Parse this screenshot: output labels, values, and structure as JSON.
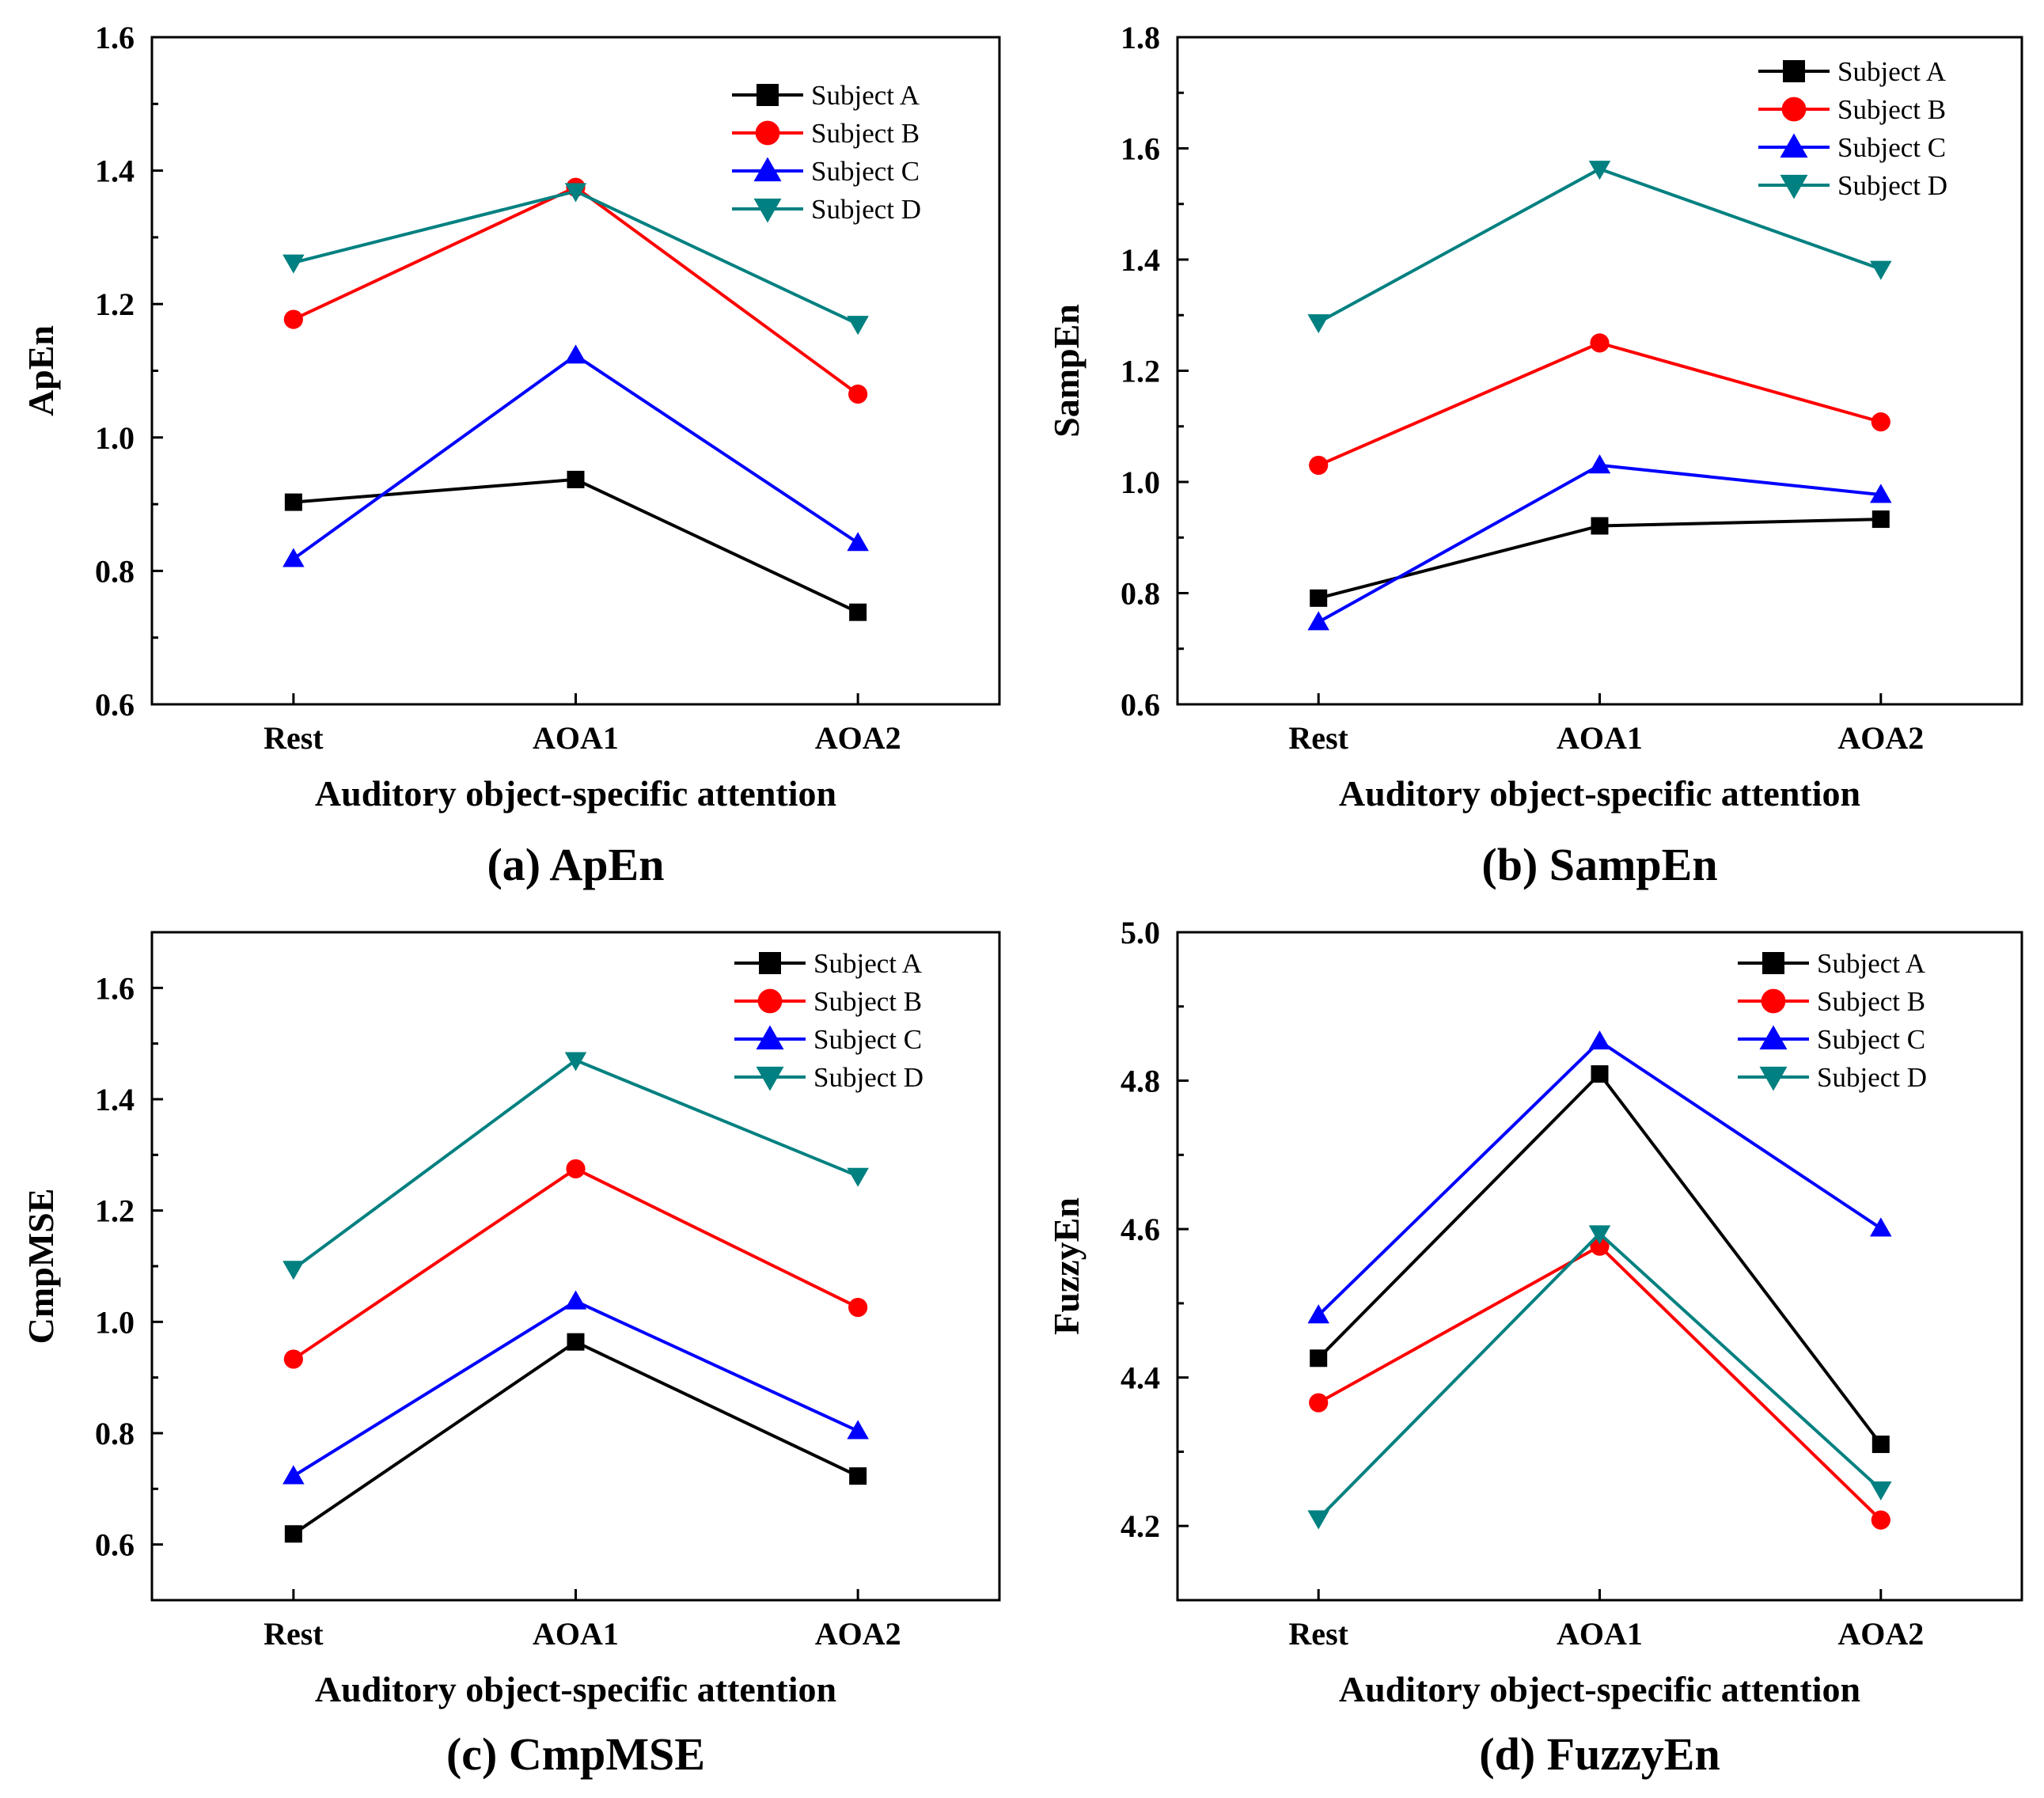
{
  "chart_data": [
    {
      "type": "line",
      "caption": "(a) ApEn",
      "xlabel": "Auditory object-specific attention",
      "ylabel": "ApEn",
      "categories": [
        "Rest",
        "AOA1",
        "AOA2"
      ],
      "ylim": [
        0.6,
        1.6
      ],
      "yticks": [
        "0.6",
        "0.8",
        "1.0",
        "1.2",
        "1.4",
        "1.6"
      ],
      "legend_position": "top-right",
      "series": [
        {
          "name": "Subject A",
          "values": [
            0.903,
            0.937,
            0.738
          ],
          "color": "#000000",
          "marker": "square"
        },
        {
          "name": "Subject B",
          "values": [
            1.177,
            1.375,
            1.065
          ],
          "color": "#ff0000",
          "marker": "circle"
        },
        {
          "name": "Subject C",
          "values": [
            0.818,
            1.123,
            0.842
          ],
          "color": "#0000ff",
          "marker": "triangle-up"
        },
        {
          "name": "Subject D",
          "values": [
            1.262,
            1.369,
            1.17
          ],
          "color": "#008080",
          "marker": "triangle-down"
        }
      ]
    },
    {
      "type": "line",
      "caption": "(b) SampEn",
      "xlabel": "Auditory object-specific attention",
      "ylabel": "SampEn",
      "categories": [
        "Rest",
        "AOA1",
        "AOA2"
      ],
      "ylim": [
        0.6,
        1.8
      ],
      "yticks": [
        "0.6",
        "0.8",
        "1.0",
        "1.2",
        "1.4",
        "1.6",
        "1.8"
      ],
      "legend_position": "top-right",
      "series": [
        {
          "name": "Subject A",
          "values": [
            0.791,
            0.921,
            0.933
          ],
          "color": "#000000",
          "marker": "square"
        },
        {
          "name": "Subject B",
          "values": [
            1.03,
            1.25,
            1.108
          ],
          "color": "#ff0000",
          "marker": "circle"
        },
        {
          "name": "Subject C",
          "values": [
            0.748,
            1.03,
            0.977
          ],
          "color": "#0000ff",
          "marker": "triangle-up"
        },
        {
          "name": "Subject D",
          "values": [
            1.287,
            1.563,
            1.383
          ],
          "color": "#008080",
          "marker": "triangle-down"
        }
      ]
    },
    {
      "type": "line",
      "caption": "(c) CmpMSE",
      "xlabel": "Auditory object-specific attention",
      "ylabel": "CmpMSE",
      "categories": [
        "Rest",
        "AOA1",
        "AOA2"
      ],
      "ylim": [
        0.5,
        1.7
      ],
      "yticks": [
        "0.6",
        "0.8",
        "1.0",
        "1.2",
        "1.4",
        "1.6"
      ],
      "legend_position": "top-right",
      "series": [
        {
          "name": "Subject A",
          "values": [
            0.619,
            0.964,
            0.723
          ],
          "color": "#000000",
          "marker": "square"
        },
        {
          "name": "Subject B",
          "values": [
            0.933,
            1.275,
            1.026
          ],
          "color": "#ff0000",
          "marker": "circle"
        },
        {
          "name": "Subject C",
          "values": [
            0.723,
            1.037,
            0.804
          ],
          "color": "#0000ff",
          "marker": "triangle-up"
        },
        {
          "name": "Subject D",
          "values": [
            1.095,
            1.47,
            1.262
          ],
          "color": "#008080",
          "marker": "triangle-down"
        }
      ]
    },
    {
      "type": "line",
      "caption": "(d) FuzzyEn",
      "xlabel": "Auditory object-specific attention",
      "ylabel": "FuzzyEn",
      "categories": [
        "Rest",
        "AOA1",
        "AOA2"
      ],
      "ylim": [
        4.1,
        5.0
      ],
      "yticks": [
        "4.2",
        "4.4",
        "4.6",
        "4.8",
        "5.0"
      ],
      "legend_position": "top-right",
      "series": [
        {
          "name": "Subject A",
          "values": [
            4.426,
            4.809,
            4.31
          ],
          "color": "#000000",
          "marker": "square"
        },
        {
          "name": "Subject B",
          "values": [
            4.366,
            4.577,
            4.208
          ],
          "color": "#ff0000",
          "marker": "circle"
        },
        {
          "name": "Subject C",
          "values": [
            4.484,
            4.853,
            4.601
          ],
          "color": "#0000ff",
          "marker": "triangle-up"
        },
        {
          "name": "Subject D",
          "values": [
            4.21,
            4.594,
            4.249
          ],
          "color": "#008080",
          "marker": "triangle-down"
        }
      ]
    }
  ]
}
